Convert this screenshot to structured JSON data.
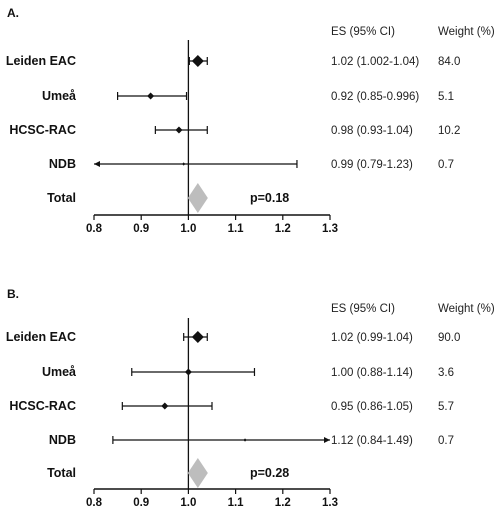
{
  "chart_data": [
    {
      "type": "forest",
      "panel_label": "A.",
      "columns": {
        "es_header": "ES  (95%  CI)",
        "weight_header": "Weight (%)"
      },
      "xlim": [
        0.8,
        1.3
      ],
      "reference_line": 1.0,
      "ticks": [
        "0.8",
        "0.9",
        "1.0",
        "1.1",
        "1.2",
        "1.3"
      ],
      "studies": [
        {
          "label": "Leiden EAC",
          "es": 1.02,
          "lo": 1.002,
          "hi": 1.04,
          "es_text": "1.02 (1.002-1.04)",
          "weight": "84.0"
        },
        {
          "label": "Umeå",
          "es": 0.92,
          "lo": 0.85,
          "hi": 0.996,
          "es_text": "0.92 (0.85-0.996)",
          "weight": "5.1"
        },
        {
          "label": "HCSC-RAC",
          "es": 0.98,
          "lo": 0.93,
          "hi": 1.04,
          "es_text": "0.98 (0.93-1.04)",
          "weight": "10.2"
        },
        {
          "label": "NDB",
          "es": 0.99,
          "lo": 0.79,
          "hi": 1.23,
          "es_text": "0.99 (0.79-1.23)",
          "weight": "0.7"
        }
      ],
      "total": {
        "label": "Total",
        "es": 1.02,
        "lo": 1.002,
        "hi": 1.04,
        "pvalue": "p=0.18"
      }
    },
    {
      "type": "forest",
      "panel_label": "B.",
      "columns": {
        "es_header": "ES  (95%  CI)",
        "weight_header": "Weight (%)"
      },
      "xlim": [
        0.8,
        1.3
      ],
      "reference_line": 1.0,
      "ticks": [
        "0.8",
        "0.9",
        "1.0",
        "1.1",
        "1.2",
        "1.3"
      ],
      "studies": [
        {
          "label": "Leiden EAC",
          "es": 1.02,
          "lo": 0.99,
          "hi": 1.04,
          "es_text": "1.02 (0.99-1.04)",
          "weight": "90.0"
        },
        {
          "label": "Umeå",
          "es": 1.0,
          "lo": 0.88,
          "hi": 1.14,
          "es_text": "1.00 (0.88-1.14)",
          "weight": "3.6"
        },
        {
          "label": "HCSC-RAC",
          "es": 0.95,
          "lo": 0.86,
          "hi": 1.05,
          "es_text": "0.95 (0.86-1.05)",
          "weight": "5.7"
        },
        {
          "label": "NDB",
          "es": 1.12,
          "lo": 0.84,
          "hi": 1.49,
          "es_text": "1.12 (0.84-1.49)",
          "weight": "0.7"
        }
      ],
      "total": {
        "label": "Total",
        "es": 1.02,
        "lo": 0.99,
        "hi": 1.04,
        "pvalue": "p=0.28"
      }
    }
  ]
}
